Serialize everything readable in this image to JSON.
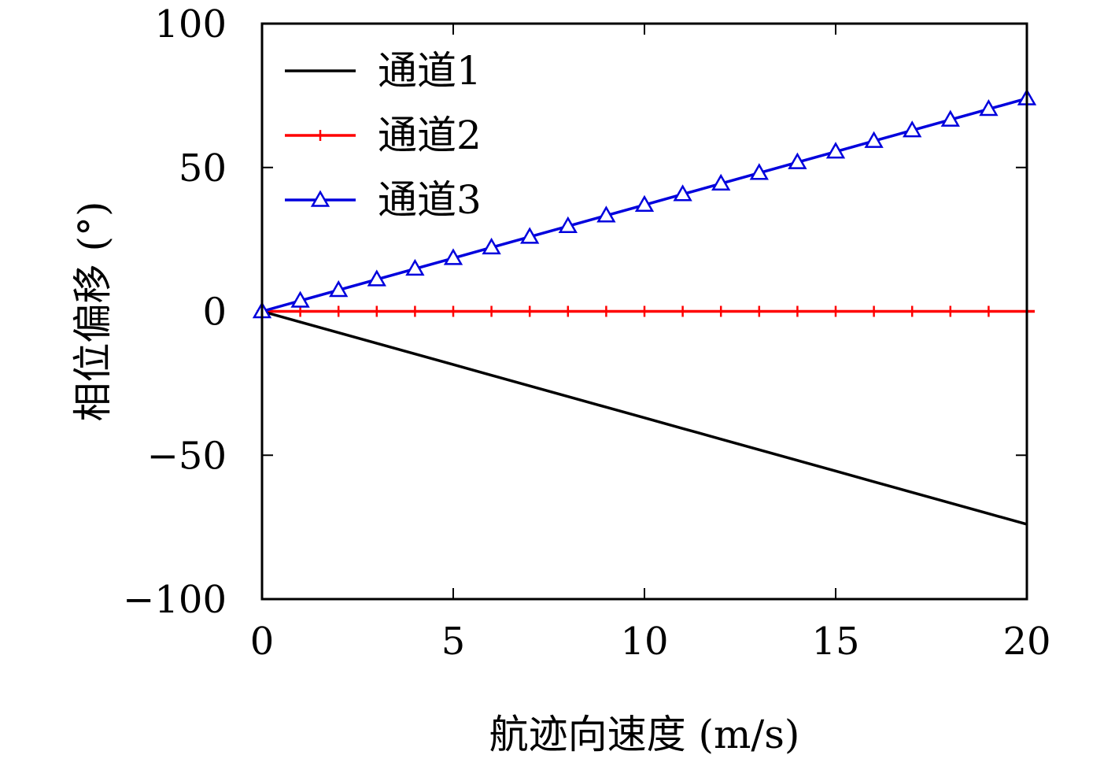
{
  "chart_data": {
    "type": "line",
    "xlabel": "航迹向速度 (m/s)",
    "ylabel": "相位偏移 (°)",
    "xlim": [
      0,
      20
    ],
    "ylim": [
      -100,
      100
    ],
    "xticks": [
      0,
      5,
      10,
      15,
      20
    ],
    "yticks": [
      -100,
      -50,
      0,
      50,
      100
    ],
    "xtick_labels": [
      "0",
      "5",
      "10",
      "15",
      "20"
    ],
    "ytick_labels": [
      "−100",
      "−50",
      "0",
      "50",
      "100"
    ],
    "grid": false,
    "legend_position": "top-left",
    "series": [
      {
        "name": "通道1",
        "color": "#000000",
        "marker": "none",
        "x": [
          0,
          1,
          2,
          3,
          4,
          5,
          6,
          7,
          8,
          9,
          10,
          11,
          12,
          13,
          14,
          15,
          16,
          17,
          18,
          19,
          20
        ],
        "values": [
          0,
          -3.7,
          -7.4,
          -11.1,
          -14.8,
          -18.5,
          -22.2,
          -25.9,
          -29.6,
          -33.3,
          -37,
          -40.7,
          -44.4,
          -48.1,
          -51.8,
          -55.5,
          -59.2,
          -62.9,
          -66.6,
          -70.3,
          -74
        ]
      },
      {
        "name": "通道2",
        "color": "#ff0000",
        "marker": "plus",
        "x": [
          0,
          1,
          2,
          3,
          4,
          5,
          6,
          7,
          8,
          9,
          10,
          11,
          12,
          13,
          14,
          15,
          16,
          17,
          18,
          19,
          20
        ],
        "values": [
          0,
          0,
          0,
          0,
          0,
          0,
          0,
          0,
          0,
          0,
          0,
          0,
          0,
          0,
          0,
          0,
          0,
          0,
          0,
          0,
          0
        ]
      },
      {
        "name": "通道3",
        "color": "#0000dd",
        "marker": "triangle",
        "x": [
          0,
          1,
          2,
          3,
          4,
          5,
          6,
          7,
          8,
          9,
          10,
          11,
          12,
          13,
          14,
          15,
          16,
          17,
          18,
          19,
          20
        ],
        "values": [
          0,
          3.7,
          7.4,
          11.1,
          14.8,
          18.5,
          22.2,
          25.9,
          29.6,
          33.3,
          37,
          40.7,
          44.4,
          48.1,
          51.8,
          55.5,
          59.2,
          62.9,
          66.6,
          70.3,
          74
        ]
      }
    ]
  }
}
